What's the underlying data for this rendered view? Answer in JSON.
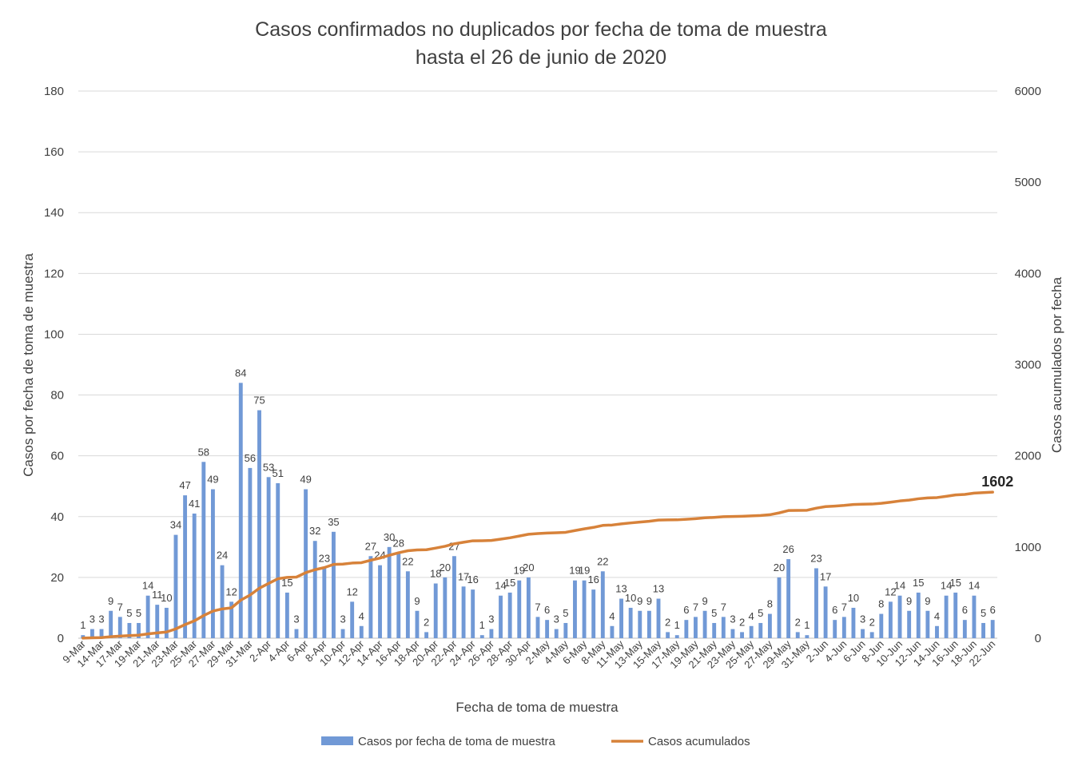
{
  "colors": {
    "bar": "#7199d6",
    "line": "#d7823a",
    "grid": "#d9d9d9",
    "text": "#404040"
  },
  "chart_data": {
    "type": "bar",
    "title": [
      "Casos confirmados no duplicados por fecha de toma de muestra",
      "hasta el 26 de junio de 2020"
    ],
    "xlabel": "Fecha de toma de muestra",
    "ylabel": "Casos por fecha de toma de muestra",
    "y2label": "Casos acumulados por fecha",
    "ylim": [
      0,
      180
    ],
    "y_ticks": [
      0,
      20,
      40,
      60,
      80,
      100,
      120,
      140,
      160,
      180
    ],
    "y2lim": [
      0,
      6000
    ],
    "y2_ticks": [
      0,
      1000,
      2000,
      3000,
      4000,
      5000,
      6000
    ],
    "grid": true,
    "legend_position": "bottom",
    "x_tick_labels": [
      "9-Mar",
      "14-Mar",
      "17-Mar",
      "19-Mar",
      "21-Mar",
      "23-Mar",
      "25-Mar",
      "27-Mar",
      "29-Mar",
      "31-Mar",
      "2-Apr",
      "4-Apr",
      "6-Apr",
      "8-Apr",
      "10-Apr",
      "12-Apr",
      "14-Apr",
      "16-Apr",
      "18-Apr",
      "20-Apr",
      "22-Apr",
      "24-Apr",
      "26-Apr",
      "28-Apr",
      "30-Apr",
      "2-May",
      "4-May",
      "6-May",
      "8-May",
      "11-May",
      "13-May",
      "15-May",
      "17-May",
      "19-May",
      "21-May",
      "23-May",
      "25-May",
      "27-May",
      "29-May",
      "31-May",
      "2-Jun",
      "4-Jun",
      "6-Jun",
      "8-Jun",
      "10-Jun",
      "12-Jun",
      "14-Jun",
      "16-Jun",
      "18-Jun",
      "22-Jun"
    ],
    "series": [
      {
        "name": "Casos por fecha de toma de muestra",
        "type": "bar",
        "axis": "left",
        "values": [
          1,
          3,
          3,
          9,
          7,
          5,
          5,
          14,
          11,
          10,
          34,
          47,
          41,
          58,
          49,
          24,
          12,
          84,
          56,
          75,
          53,
          51,
          15,
          3,
          49,
          32,
          23,
          35,
          3,
          12,
          4,
          27,
          24,
          30,
          28,
          22,
          9,
          2,
          18,
          20,
          27,
          17,
          16,
          1,
          3,
          14,
          15,
          19,
          20,
          7,
          6,
          3,
          5,
          19,
          19,
          16,
          22,
          4,
          13,
          10,
          9,
          9,
          13,
          2,
          1,
          6,
          7,
          9,
          5,
          7,
          3,
          2,
          4,
          5,
          8,
          20,
          26,
          2,
          1,
          23,
          17,
          6,
          7,
          10,
          3,
          2,
          8,
          12,
          14,
          9,
          15,
          9,
          4,
          14,
          15,
          6,
          14,
          5,
          6
        ]
      },
      {
        "name": "Casos acumulados",
        "type": "line",
        "axis": "right",
        "values": [
          1,
          4,
          7,
          16,
          23,
          28,
          33,
          47,
          58,
          68,
          102,
          149,
          190,
          248,
          297,
          321,
          333,
          417,
          473,
          548,
          601,
          652,
          667,
          670,
          719,
          751,
          774,
          809,
          812,
          824,
          828,
          855,
          879,
          909,
          937,
          959,
          968,
          970,
          988,
          1008,
          1035,
          1052,
          1068,
          1069,
          1072,
          1086,
          1101,
          1120,
          1140,
          1147,
          1153,
          1156,
          1161,
          1180,
          1199,
          1215,
          1237,
          1241,
          1254,
          1264,
          1273,
          1282,
          1295,
          1297,
          1298,
          1304,
          1311,
          1320,
          1325,
          1332,
          1335,
          1337,
          1341,
          1346,
          1354,
          1374,
          1400,
          1402,
          1403,
          1426,
          1443,
          1449,
          1456,
          1466,
          1469,
          1471,
          1479,
          1491,
          1505,
          1514,
          1529,
          1538,
          1542,
          1556,
          1571,
          1577,
          1591,
          1596,
          1602
        ]
      }
    ],
    "final_label": "1602"
  }
}
